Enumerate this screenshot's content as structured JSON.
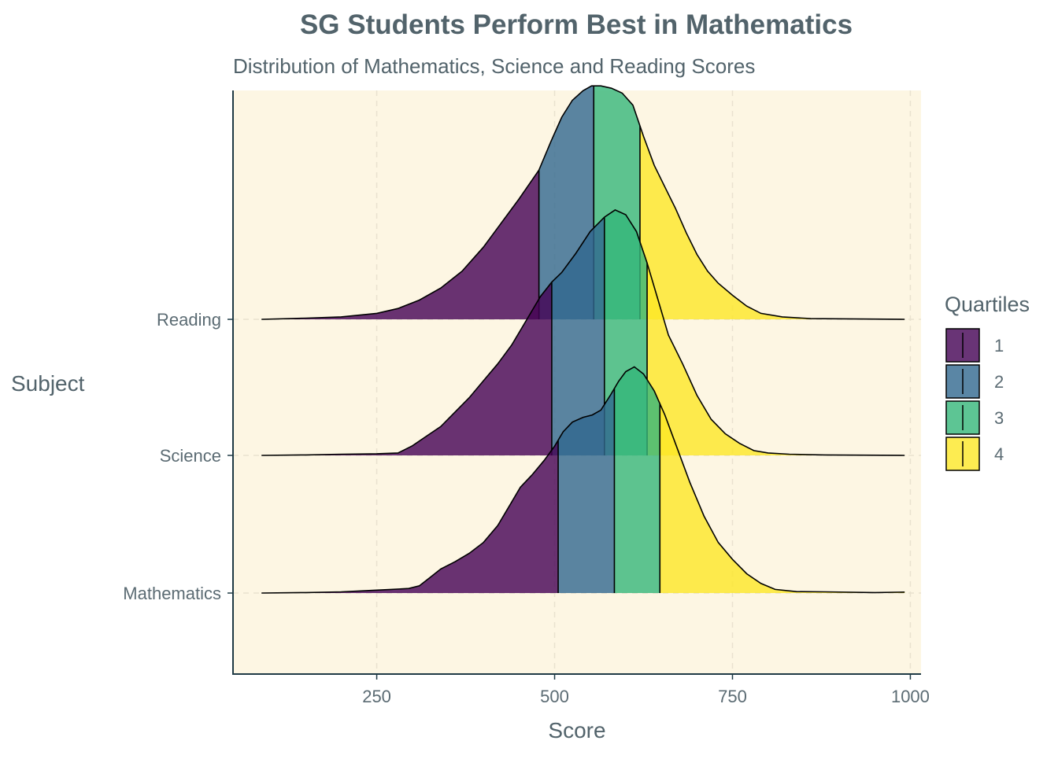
{
  "chart_data": {
    "type": "area",
    "subtype": "ridgeline density (quartile-shaded)",
    "title": "SG Students Perform Best in Mathematics",
    "subtitle": "Distribution of Mathematics, Science and Reading Scores",
    "xlabel": "Score",
    "ylabel": "Subject",
    "xlim": [
      48,
      1015
    ],
    "x_ticks": [
      250,
      500,
      750,
      1000
    ],
    "x_tick_labels": [
      "250",
      "500",
      "750",
      "1000"
    ],
    "categories": [
      "Mathematics",
      "Science",
      "Reading"
    ],
    "grid": "dashed vertical major lines and horizontal lines at subjects",
    "legend": {
      "title": "Quartiles",
      "position": "right",
      "items": [
        "1",
        "2",
        "3",
        "4"
      ]
    },
    "quartile_colors": [
      "#440154",
      "#31688E",
      "#35B779",
      "#FDE725"
    ],
    "panel_background": "#FDF6E3",
    "series": [
      {
        "name": "Mathematics",
        "quartile_breaks": [
          505,
          584,
          648
        ],
        "density": [
          [
            88,
            0
          ],
          [
            150,
            0.002
          ],
          [
            200,
            0.005
          ],
          [
            250,
            0.012
          ],
          [
            270,
            0.015
          ],
          [
            295,
            0.019
          ],
          [
            310,
            0.03
          ],
          [
            325,
            0.065
          ],
          [
            340,
            0.1
          ],
          [
            360,
            0.13
          ],
          [
            380,
            0.165
          ],
          [
            400,
            0.21
          ],
          [
            420,
            0.28
          ],
          [
            438,
            0.37
          ],
          [
            452,
            0.44
          ],
          [
            468,
            0.49
          ],
          [
            485,
            0.55
          ],
          [
            500,
            0.61
          ],
          [
            512,
            0.67
          ],
          [
            525,
            0.71
          ],
          [
            540,
            0.73
          ],
          [
            553,
            0.74
          ],
          [
            565,
            0.76
          ],
          [
            578,
            0.82
          ],
          [
            590,
            0.88
          ],
          [
            600,
            0.92
          ],
          [
            612,
            0.94
          ],
          [
            625,
            0.91
          ],
          [
            640,
            0.84
          ],
          [
            655,
            0.74
          ],
          [
            670,
            0.62
          ],
          [
            690,
            0.46
          ],
          [
            710,
            0.32
          ],
          [
            730,
            0.21
          ],
          [
            750,
            0.14
          ],
          [
            770,
            0.08
          ],
          [
            790,
            0.04
          ],
          [
            810,
            0.015
          ],
          [
            840,
            0.006
          ],
          [
            880,
            0.005
          ],
          [
            950,
            0.002
          ],
          [
            992,
            0.004
          ]
        ]
      },
      {
        "name": "Science",
        "quartile_breaks": [
          496,
          570,
          630
        ],
        "density": [
          [
            88,
            0
          ],
          [
            150,
            0.002
          ],
          [
            200,
            0.005
          ],
          [
            250,
            0.007
          ],
          [
            280,
            0.01
          ],
          [
            300,
            0.04
          ],
          [
            320,
            0.08
          ],
          [
            340,
            0.12
          ],
          [
            360,
            0.18
          ],
          [
            380,
            0.24
          ],
          [
            400,
            0.31
          ],
          [
            420,
            0.38
          ],
          [
            440,
            0.46
          ],
          [
            460,
            0.56
          ],
          [
            480,
            0.66
          ],
          [
            496,
            0.72
          ],
          [
            510,
            0.76
          ],
          [
            530,
            0.84
          ],
          [
            550,
            0.93
          ],
          [
            570,
            0.99
          ],
          [
            585,
            1.02
          ],
          [
            600,
            1.0
          ],
          [
            615,
            0.93
          ],
          [
            630,
            0.8
          ],
          [
            645,
            0.65
          ],
          [
            660,
            0.5
          ],
          [
            680,
            0.38
          ],
          [
            700,
            0.25
          ],
          [
            720,
            0.15
          ],
          [
            740,
            0.09
          ],
          [
            760,
            0.05
          ],
          [
            780,
            0.02
          ],
          [
            800,
            0.01
          ],
          [
            830,
            0.005
          ],
          [
            880,
            0.002
          ],
          [
            992,
            0
          ]
        ]
      },
      {
        "name": "Reading",
        "quartile_breaks": [
          478,
          555,
          620
        ],
        "density": [
          [
            88,
            0
          ],
          [
            150,
            0.005
          ],
          [
            200,
            0.01
          ],
          [
            250,
            0.025
          ],
          [
            280,
            0.045
          ],
          [
            310,
            0.08
          ],
          [
            340,
            0.13
          ],
          [
            370,
            0.2
          ],
          [
            400,
            0.3
          ],
          [
            425,
            0.4
          ],
          [
            450,
            0.5
          ],
          [
            478,
            0.62
          ],
          [
            495,
            0.74
          ],
          [
            510,
            0.84
          ],
          [
            525,
            0.91
          ],
          [
            540,
            0.95
          ],
          [
            552,
            0.97
          ],
          [
            565,
            0.97
          ],
          [
            580,
            0.96
          ],
          [
            595,
            0.94
          ],
          [
            610,
            0.89
          ],
          [
            625,
            0.76
          ],
          [
            640,
            0.64
          ],
          [
            655,
            0.55
          ],
          [
            670,
            0.46
          ],
          [
            685,
            0.36
          ],
          [
            700,
            0.27
          ],
          [
            715,
            0.2
          ],
          [
            730,
            0.15
          ],
          [
            750,
            0.1
          ],
          [
            770,
            0.055
          ],
          [
            790,
            0.025
          ],
          [
            820,
            0.01
          ],
          [
            860,
            0.003
          ],
          [
            992,
            0
          ]
        ]
      }
    ]
  }
}
